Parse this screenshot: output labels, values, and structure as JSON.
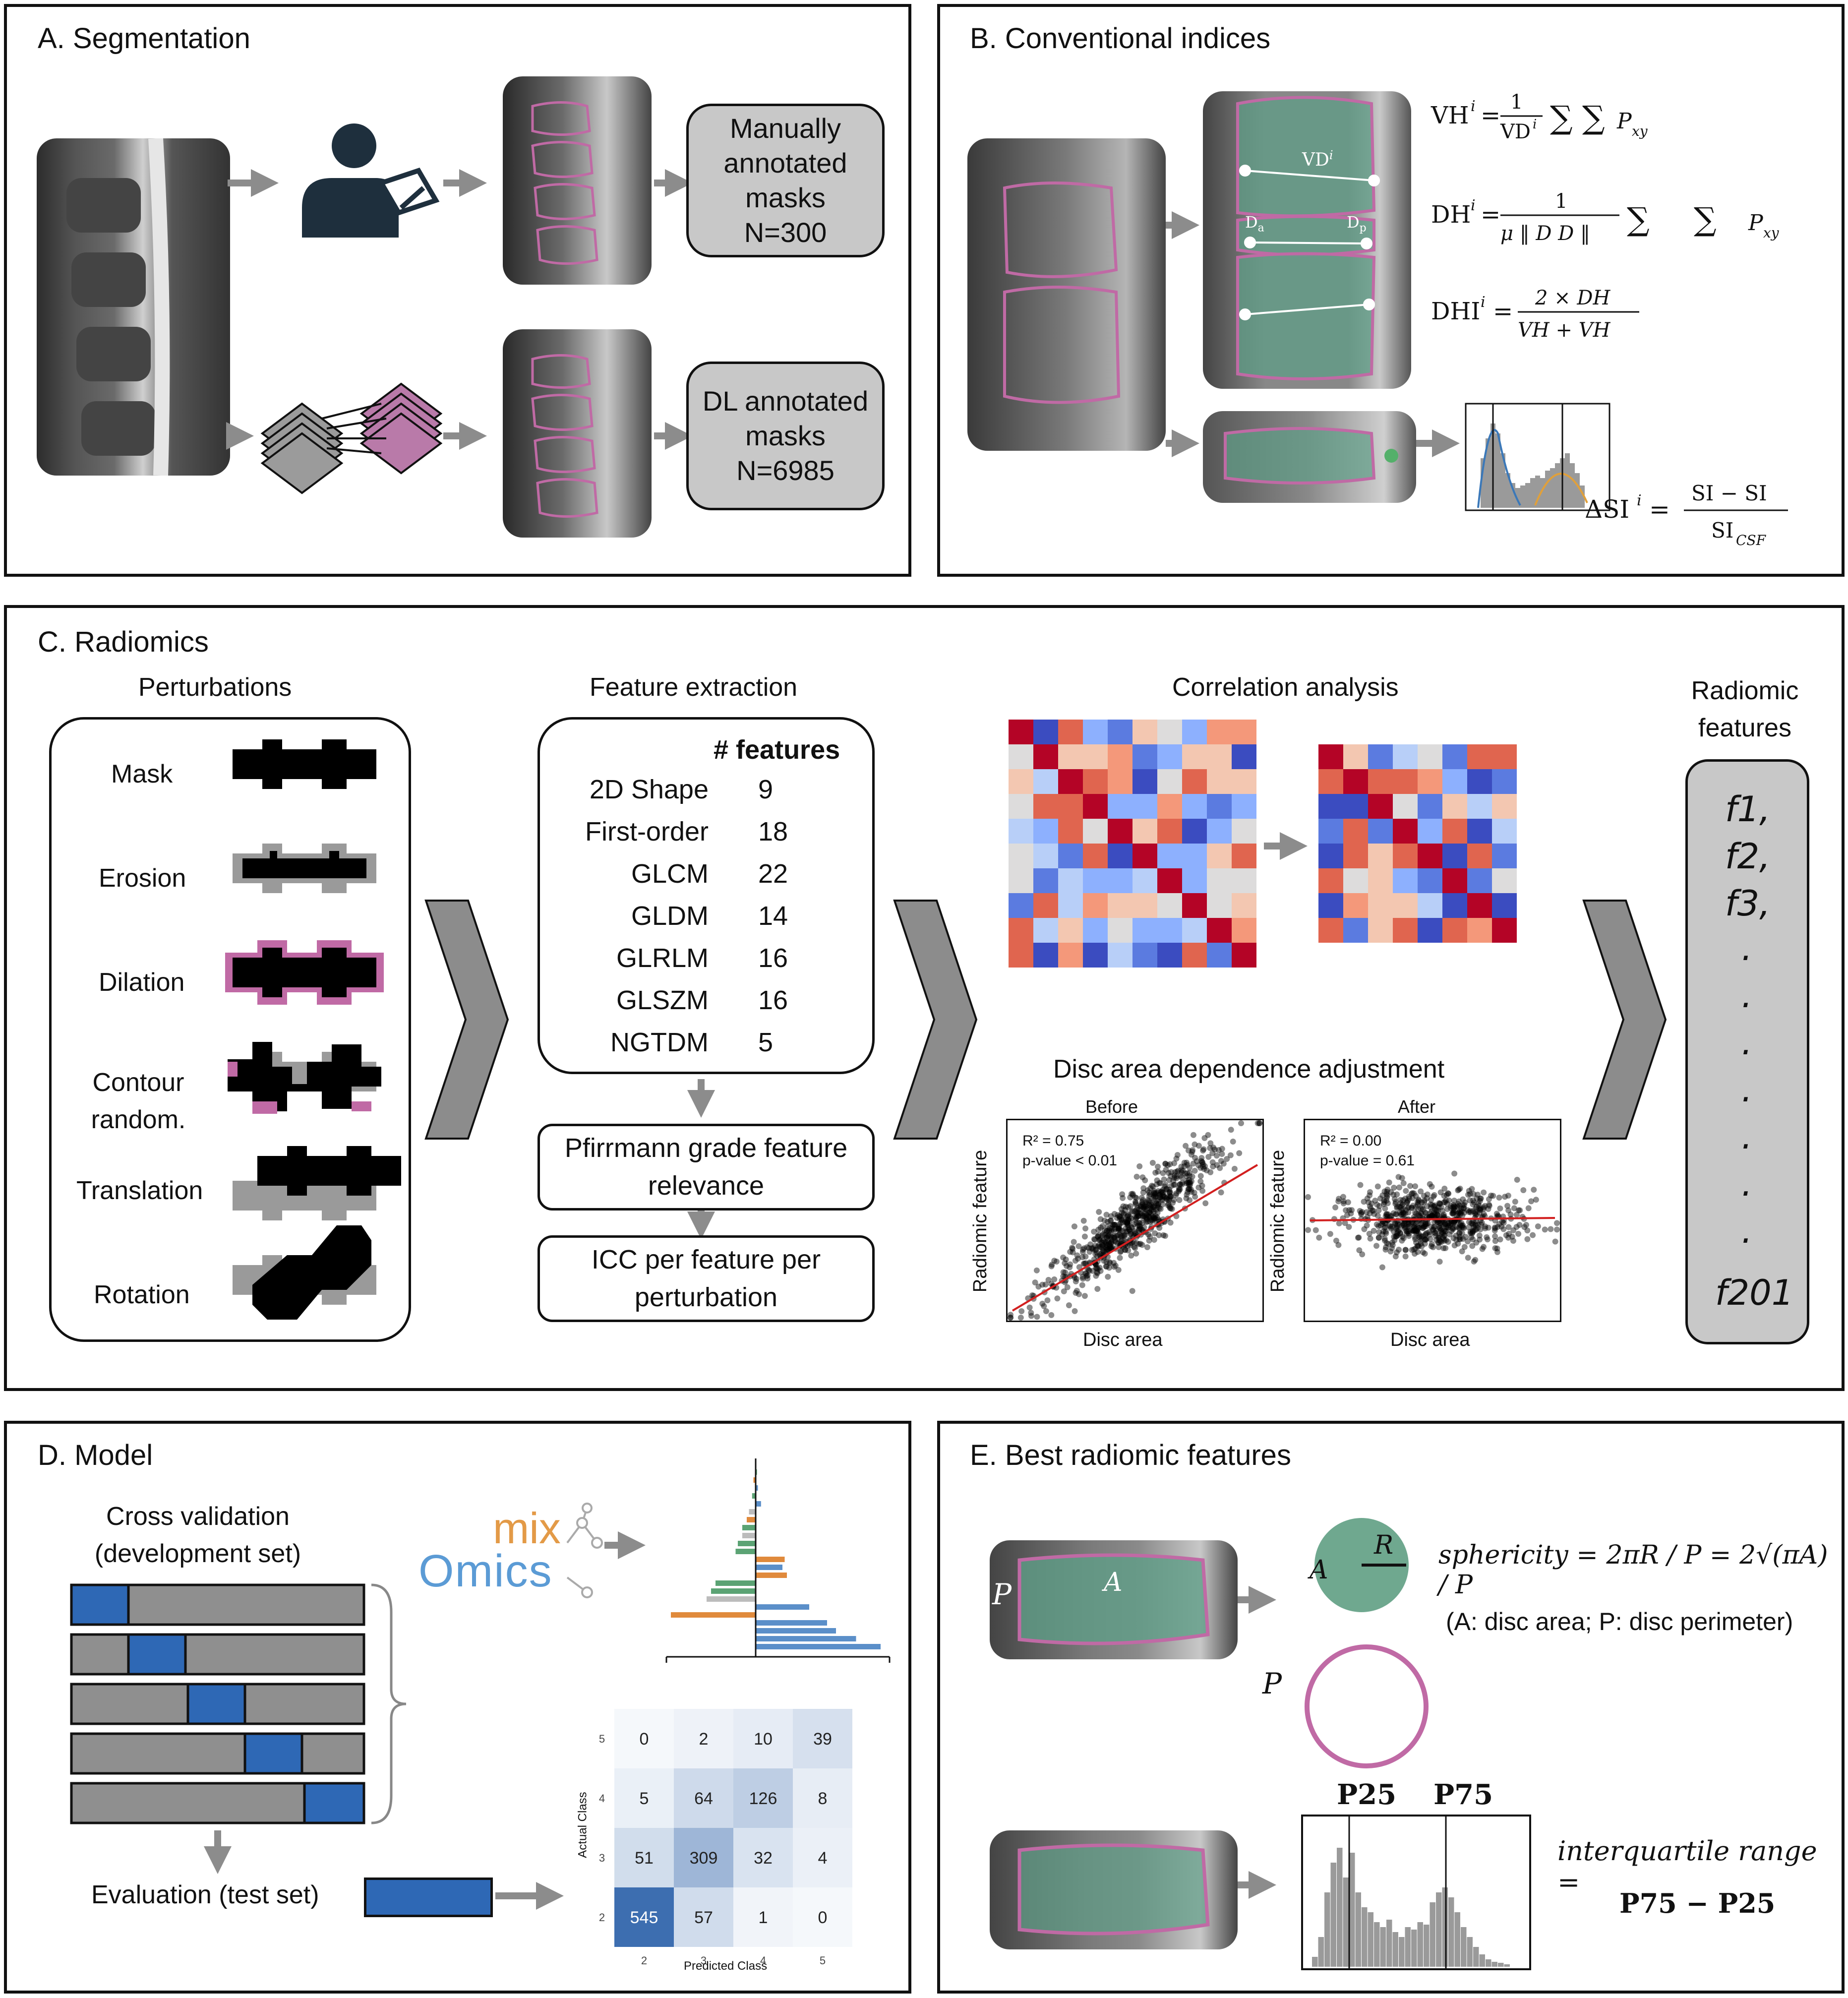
{
  "panelA": {
    "title": "A. Segmentation",
    "manual_box": [
      "Manually",
      "annotated",
      "masks",
      "N=300"
    ],
    "dl_box": [
      "DL annotated",
      "masks",
      "N=6985"
    ]
  },
  "panelB": {
    "title": "B. Conventional indices",
    "vd_label": "VD",
    "vd_sup": "i",
    "da_label": "D",
    "da_sub": "a",
    "dp_label": "D",
    "dp_sub": "p",
    "eq_vh": "VHⁱ = (1 / VDⁱ) Σₓ₌₁ʰ Σᵧ₌₁ʷ Pₓᵧ",
    "eq_dh": "DHⁱ = 1 / (μ ‖DᵢₐDᵢₚ‖) Σ Σ Pₓᵧ",
    "eq_dhi": "DHIⁱ = 2 × DHⁱ / (VHⁱ + VHⁱ⁺¹)",
    "eq_dsi": "ΔSIⁱ = (SIⁱ₂ − SIⁱ₁) / SI_CSF"
  },
  "panelC": {
    "title": "C. Radiomics",
    "perturbations_title": "Perturbations",
    "perturbations": [
      "Mask",
      "Erosion",
      "Dilation",
      "Contour random.",
      "Translation",
      "Rotation"
    ],
    "feature_extraction_title": "Feature extraction",
    "features_header": "# features",
    "feature_rows": [
      {
        "name": "2D Shape",
        "count": "9"
      },
      {
        "name": "First-order",
        "count": "18"
      },
      {
        "name": "GLCM",
        "count": "22"
      },
      {
        "name": "GLDM",
        "count": "14"
      },
      {
        "name": "GLRLM",
        "count": "16"
      },
      {
        "name": "GLSZM",
        "count": "16"
      },
      {
        "name": "NGTDM",
        "count": "5"
      }
    ],
    "relevance_box": "Pfirrmann grade feature relevance",
    "icc_box": "ICC per feature per perturbation",
    "correlation_title": "Correlation analysis",
    "disc_area_title": "Disc area dependence adjustment",
    "before": {
      "title": "Before",
      "r2": "R² = 0.75",
      "p": "p-value < 0.01",
      "xlabel": "Disc area",
      "ylabel": "Radiomic feature"
    },
    "after": {
      "title": "After",
      "r2": "R² = 0.00",
      "p": "p-value = 0.61",
      "xlabel": "Disc area",
      "ylabel": "Radiomic feature"
    },
    "radiomic_title": "Radiomic features",
    "radiomic_list": [
      "f1,",
      "f2,",
      "f3,",
      ".",
      ".",
      ".",
      ".",
      ".",
      ".",
      ".",
      "f201"
    ]
  },
  "panelD": {
    "title": "D. Model",
    "cv_title": "Cross validation (development set)",
    "evaluation_label": "Evaluation (test set)",
    "logo_top": "mix",
    "logo_bottom": "Omics",
    "confusion": {
      "actual_label": "Actual Class",
      "predicted_label": "Predicted Class",
      "row_labels": [
        "5",
        "4",
        "3",
        "2"
      ],
      "col_labels": [
        "2",
        "3",
        "4",
        "5"
      ],
      "values": [
        [
          0,
          2,
          10,
          39
        ],
        [
          5,
          64,
          126,
          8
        ],
        [
          51,
          309,
          32,
          4
        ],
        [
          545,
          57,
          1,
          0
        ]
      ]
    }
  },
  "panelE": {
    "title": "E. Best radiomic features",
    "sphericity_eq": "sphericity = 2πR / P = 2√(πA) / P",
    "sphericity_note": "(A: disc area; P: disc perimeter)",
    "iqr_eq_line1": "interquartile range =",
    "iqr_eq_line2": "P75 − P25",
    "p25": "P25",
    "p75": "P75",
    "label_A": "A",
    "label_R": "R",
    "label_P": "P"
  },
  "colors": {
    "mask_pink": "#c06aa5",
    "disc_green": "#6fa88f",
    "blue_fold": "#2e68b5",
    "gray_fill": "#8f8f8f",
    "box_gray": "#c8c8c8"
  }
}
